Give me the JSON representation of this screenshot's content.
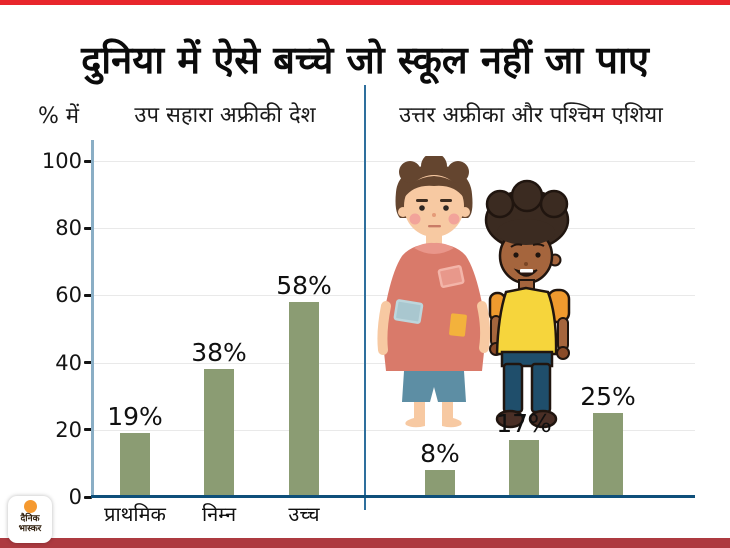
{
  "page_title": "दुनिया में ऐसे बच्चे जो स्कूल नहीं जा पाए",
  "colors": {
    "top_accent": "#E8262C",
    "bottom_accent": "#AD3A40",
    "bar": "#8B9C73",
    "y_axis": "#8AAEC5",
    "x_axis": "#0E4F7A",
    "divider": "#2E6F9D",
    "gridline": "#E9E9E9"
  },
  "chart_data": {
    "type": "bar",
    "title": "दुनिया में ऐसे बच्चे जो स्कूल नहीं जा पाए",
    "unit_label": "% में",
    "ylim": [
      0,
      100
    ],
    "yticks": [
      100,
      80,
      60,
      40,
      20,
      0
    ],
    "grid": true,
    "legend": "none",
    "groups": [
      {
        "name": "उप सहारा अफ्रीकी देश",
        "categories": [
          "प्राथमिक",
          "निम्न",
          "उच्च"
        ],
        "values": [
          19,
          38,
          58
        ],
        "labels": [
          "19%",
          "38%",
          "58%"
        ]
      },
      {
        "name": "उत्तर अफ्रीका और पश्चिम एशिया",
        "categories": [],
        "values": [
          8,
          17,
          25
        ],
        "labels": [
          "8%",
          "17%",
          "25%"
        ]
      }
    ]
  },
  "illustration": {
    "name": "children-illustration"
  },
  "branding": {
    "logo_line1": "दैनिक",
    "logo_line2": "भास्कर"
  }
}
